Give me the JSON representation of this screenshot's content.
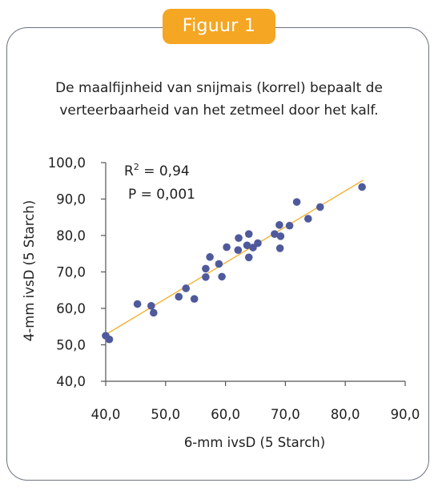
{
  "figure": {
    "badge_label": "Figuur 1",
    "caption_line1": "De maalfijnheid van snijmais (korrel) bepaalt de",
    "caption_line2": "verteerbaarheid van het zetmeel door het kalf."
  },
  "colors": {
    "badge": "#f5a623",
    "points": "#4f5a9c",
    "trendline": "#f2b233",
    "border": "#6b7280"
  },
  "chart_data": {
    "type": "scatter",
    "xlabel": "6-mm ivsD (5 Starch)",
    "ylabel": "4-mm ivsD (5 Starch)",
    "xlim": [
      40,
      90
    ],
    "ylim": [
      40,
      100
    ],
    "x_ticks": [
      "40,0",
      "50,0",
      "60,0",
      "70,0",
      "80,0",
      "90,0"
    ],
    "y_ticks": [
      "40,0",
      "50,0",
      "60,0",
      "70,0",
      "80,0",
      "90,0",
      "100,0"
    ],
    "annotations": {
      "r2_prefix": "R",
      "r2_sup": "2",
      "r2_value": " = 0,94",
      "p_value": "P = 0,001"
    },
    "trendline": {
      "x": [
        40,
        83
      ],
      "y": [
        52.8,
        95.2
      ]
    },
    "grid": false,
    "points": [
      {
        "x": 40.0,
        "y": 52.5
      },
      {
        "x": 40.6,
        "y": 51.5
      },
      {
        "x": 45.3,
        "y": 61.2
      },
      {
        "x": 47.6,
        "y": 60.7
      },
      {
        "x": 48.0,
        "y": 58.8
      },
      {
        "x": 52.2,
        "y": 63.2
      },
      {
        "x": 53.4,
        "y": 65.5
      },
      {
        "x": 54.8,
        "y": 62.6
      },
      {
        "x": 56.7,
        "y": 68.6
      },
      {
        "x": 56.7,
        "y": 70.9
      },
      {
        "x": 57.4,
        "y": 74.1
      },
      {
        "x": 58.9,
        "y": 72.2
      },
      {
        "x": 59.4,
        "y": 68.7
      },
      {
        "x": 60.2,
        "y": 76.8
      },
      {
        "x": 62.1,
        "y": 76.0
      },
      {
        "x": 62.2,
        "y": 79.3
      },
      {
        "x": 63.6,
        "y": 77.3
      },
      {
        "x": 63.9,
        "y": 74.0
      },
      {
        "x": 63.9,
        "y": 80.4
      },
      {
        "x": 64.6,
        "y": 76.7
      },
      {
        "x": 65.4,
        "y": 77.9
      },
      {
        "x": 68.2,
        "y": 80.4
      },
      {
        "x": 69.0,
        "y": 82.9
      },
      {
        "x": 69.1,
        "y": 76.5
      },
      {
        "x": 69.2,
        "y": 79.8
      },
      {
        "x": 70.7,
        "y": 82.7
      },
      {
        "x": 71.9,
        "y": 89.2
      },
      {
        "x": 73.8,
        "y": 84.6
      },
      {
        "x": 75.8,
        "y": 87.8
      },
      {
        "x": 82.8,
        "y": 93.3
      }
    ]
  }
}
